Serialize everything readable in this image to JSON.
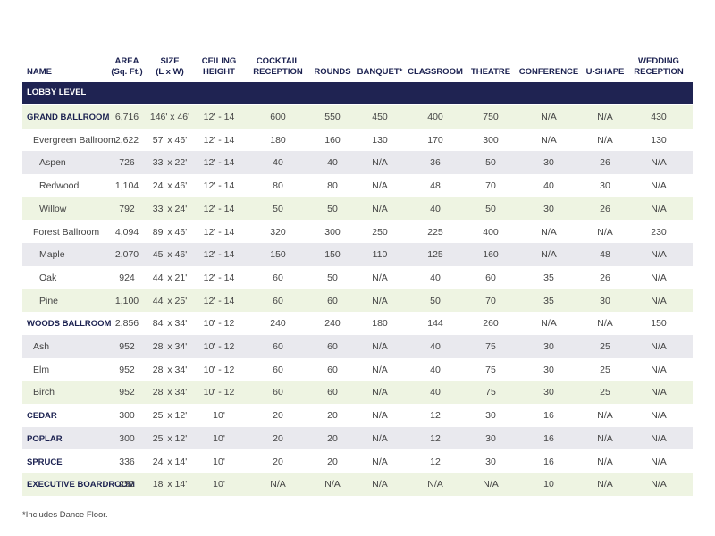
{
  "header": {
    "columns": [
      [
        "NAME"
      ],
      [
        "AREA",
        "(Sq. Ft.)"
      ],
      [
        "SIZE",
        "(L x W)"
      ],
      [
        "CEILING",
        "HEIGHT"
      ],
      [
        "COCKTAIL",
        "RECEPTION"
      ],
      [
        "ROUNDS"
      ],
      [
        "BANQUET*"
      ],
      [
        "CLASSROOM"
      ],
      [
        "THEATRE"
      ],
      [
        "CONFERENCE"
      ],
      [
        "U-SHAPE"
      ],
      [
        "WEDDING",
        "RECEPTION"
      ]
    ]
  },
  "section": "LOBBY LEVEL",
  "table": {
    "rows": [
      {
        "indent": 0,
        "cells": [
          "GRAND BALLROOM",
          "6,716",
          "146' x 46'",
          "12' - 14",
          "600",
          "550",
          "450",
          "400",
          "750",
          "N/A",
          "N/A",
          "430"
        ]
      },
      {
        "indent": 1,
        "cells": [
          "Evergreen Ballroom",
          "2,622",
          "57' x 46'",
          "12' - 14",
          "180",
          "160",
          "130",
          "170",
          "300",
          "N/A",
          "N/A",
          "130"
        ]
      },
      {
        "indent": 2,
        "cells": [
          "Aspen",
          "726",
          "33' x 22'",
          "12' - 14",
          "40",
          "40",
          "N/A",
          "36",
          "50",
          "30",
          "26",
          "N/A"
        ]
      },
      {
        "indent": 2,
        "cells": [
          "Redwood",
          "1,104",
          "24' x 46'",
          "12' - 14",
          "80",
          "80",
          "N/A",
          "48",
          "70",
          "40",
          "30",
          "N/A"
        ]
      },
      {
        "indent": 2,
        "cells": [
          "Willow",
          "792",
          "33' x 24'",
          "12' - 14",
          "50",
          "50",
          "N/A",
          "40",
          "50",
          "30",
          "26",
          "N/A"
        ]
      },
      {
        "indent": 1,
        "cells": [
          "Forest Ballroom",
          "4,094",
          "89' x 46'",
          "12' - 14",
          "320",
          "300",
          "250",
          "225",
          "400",
          "N/A",
          "N/A",
          "230"
        ]
      },
      {
        "indent": 2,
        "cells": [
          "Maple",
          "2,070",
          "45' x 46'",
          "12' - 14",
          "150",
          "150",
          "110",
          "125",
          "160",
          "N/A",
          "48",
          "N/A"
        ]
      },
      {
        "indent": 2,
        "cells": [
          "Oak",
          "924",
          "44' x 21'",
          "12' - 14",
          "60",
          "50",
          "N/A",
          "40",
          "60",
          "35",
          "26",
          "N/A"
        ]
      },
      {
        "indent": 2,
        "cells": [
          "Pine",
          "1,100",
          "44' x 25'",
          "12' - 14",
          "60",
          "60",
          "N/A",
          "50",
          "70",
          "35",
          "30",
          "N/A"
        ]
      },
      {
        "indent": 0,
        "cells": [
          "WOODS BALLROOM",
          "2,856",
          "84' x 34'",
          "10' - 12",
          "240",
          "240",
          "180",
          "144",
          "260",
          "N/A",
          "N/A",
          "150"
        ]
      },
      {
        "indent": 1,
        "cells": [
          "Ash",
          "952",
          "28' x 34'",
          "10' - 12",
          "60",
          "60",
          "N/A",
          "40",
          "75",
          "30",
          "25",
          "N/A"
        ]
      },
      {
        "indent": 1,
        "cells": [
          "Elm",
          "952",
          "28' x 34'",
          "10' - 12",
          "60",
          "60",
          "N/A",
          "40",
          "75",
          "30",
          "25",
          "N/A"
        ]
      },
      {
        "indent": 1,
        "cells": [
          "Birch",
          "952",
          "28' x 34'",
          "10' - 12",
          "60",
          "60",
          "N/A",
          "40",
          "75",
          "30",
          "25",
          "N/A"
        ]
      },
      {
        "indent": 0,
        "cells": [
          "CEDAR",
          "300",
          "25' x 12'",
          "10'",
          "20",
          "20",
          "N/A",
          "12",
          "30",
          "16",
          "N/A",
          "N/A"
        ]
      },
      {
        "indent": 0,
        "cells": [
          "POPLAR",
          "300",
          "25' x 12'",
          "10'",
          "20",
          "20",
          "N/A",
          "12",
          "30",
          "16",
          "N/A",
          "N/A"
        ]
      },
      {
        "indent": 0,
        "cells": [
          "SPRUCE",
          "336",
          "24' x 14'",
          "10'",
          "20",
          "20",
          "N/A",
          "12",
          "30",
          "16",
          "N/A",
          "N/A"
        ]
      },
      {
        "indent": 0,
        "cells": [
          "EXECUTIVE BOARDROOM",
          "252",
          "18' x 14'",
          "10'",
          "N/A",
          "N/A",
          "N/A",
          "N/A",
          "N/A",
          "10",
          "N/A",
          "N/A"
        ]
      }
    ]
  },
  "footnote": "*Includes Dance Floor."
}
